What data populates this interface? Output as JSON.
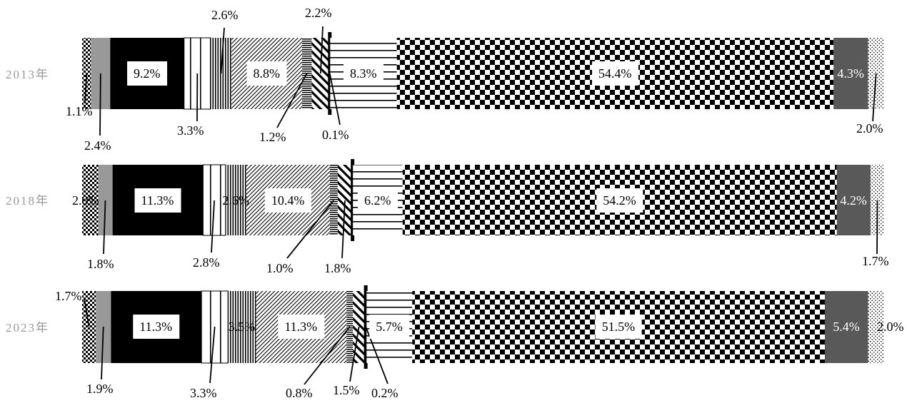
{
  "chart_data": {
    "type": "bar",
    "orientation": "horizontal",
    "stacked": true,
    "title": "",
    "xlabel": "",
    "ylabel": "",
    "xlim": [
      0,
      100
    ],
    "legend": "none",
    "grid": false,
    "categories": [
      "2013年",
      "2018年",
      "2023年"
    ],
    "series": [
      {
        "pattern": "checker-small",
        "values": [
          1.1,
          2.0,
          1.7
        ],
        "labels": [
          "1.1%",
          "2.0%",
          "1.7%"
        ]
      },
      {
        "color": "#999999",
        "values": [
          2.4,
          1.8,
          1.9
        ],
        "labels": [
          "2.4%",
          "1.8%",
          "1.9%"
        ]
      },
      {
        "color": "#000000",
        "values": [
          9.2,
          11.3,
          11.3
        ],
        "labels": [
          "9.2%",
          "11.3%",
          "11.3%"
        ]
      },
      {
        "pattern": "vertical-wide",
        "values": [
          3.3,
          2.8,
          3.3
        ],
        "labels": [
          "3.3%",
          "2.8%",
          "3.3%"
        ]
      },
      {
        "pattern": "vertical-dense",
        "values": [
          2.6,
          2.6,
          3.5
        ],
        "labels": [
          "2.6%",
          "2.6%",
          "3.5%"
        ]
      },
      {
        "pattern": "diagonal-fine",
        "values": [
          8.8,
          10.4,
          11.3
        ],
        "labels": [
          "8.8%",
          "10.4%",
          "11.3%"
        ]
      },
      {
        "pattern": "horizontal-fine",
        "values": [
          1.2,
          1.0,
          0.8
        ],
        "labels": [
          "1.2%",
          "1.0%",
          "0.8%"
        ]
      },
      {
        "pattern": "diagonal-bold",
        "values": [
          2.2,
          1.8,
          1.5
        ],
        "labels": [
          "2.2%",
          "1.8%",
          "1.5%"
        ]
      },
      {
        "pattern": "thick-black",
        "values": [
          0.1,
          0.1,
          0.2
        ],
        "labels": [
          "0.1%",
          "",
          "0.2%"
        ]
      },
      {
        "pattern": "horizontal-wide",
        "values": [
          8.3,
          6.2,
          5.7
        ],
        "labels": [
          "8.3%",
          "6.2%",
          "5.7%"
        ]
      },
      {
        "pattern": "checker-large",
        "values": [
          54.4,
          54.2,
          51.5
        ],
        "labels": [
          "54.4%",
          "54.2%",
          "51.5%"
        ]
      },
      {
        "color": "#595959",
        "values": [
          4.3,
          4.2,
          5.4
        ],
        "labels": [
          "4.3%",
          "4.2%",
          "5.4%"
        ]
      },
      {
        "pattern": "dots",
        "values": [
          2.0,
          1.7,
          2.0
        ],
        "labels": [
          "2.0%",
          "1.7%",
          "2.0%"
        ]
      }
    ]
  }
}
